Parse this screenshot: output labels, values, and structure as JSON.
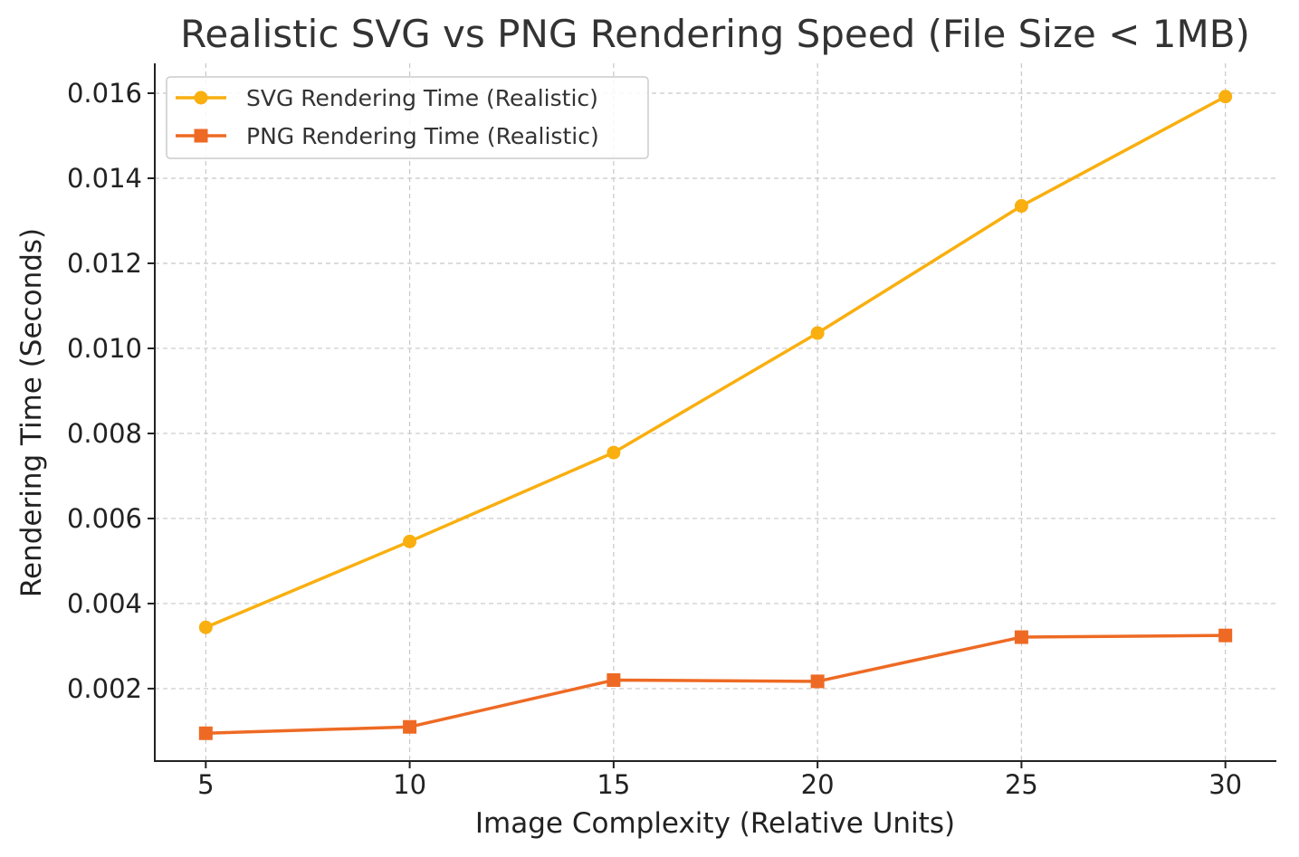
{
  "chart_data": {
    "type": "line",
    "title": "Realistic SVG vs PNG Rendering Speed (File Size < 1MB)",
    "xlabel": "Image Complexity (Relative Units)",
    "ylabel": "Rendering Time (Seconds)",
    "x": [
      5,
      10,
      15,
      20,
      25,
      30
    ],
    "x_ticks": [
      "5",
      "10",
      "15",
      "20",
      "25",
      "30"
    ],
    "xlim": [
      3.75,
      31.25
    ],
    "ylim": [
      0.000296,
      0.016702
    ],
    "y_ticks": [
      "0.002",
      "0.004",
      "0.006",
      "0.008",
      "0.010",
      "0.012",
      "0.014",
      "0.016"
    ],
    "y_tick_values": [
      0.002,
      0.004,
      0.006,
      0.008,
      0.01,
      0.012,
      0.014,
      0.016
    ],
    "grid": true,
    "legend_position": "upper-left",
    "series": [
      {
        "name": "SVG Rendering Time (Realistic)",
        "color": "#F9AF0F",
        "marker": "circle",
        "values": [
          0.00344,
          0.00546,
          0.00755,
          0.01036,
          0.01335,
          0.01592
        ]
      },
      {
        "name": "PNG Rendering Time (Realistic)",
        "color": "#EE6A24",
        "marker": "square",
        "values": [
          0.00095,
          0.0011,
          0.0022,
          0.00217,
          0.00321,
          0.00325
        ]
      }
    ]
  }
}
